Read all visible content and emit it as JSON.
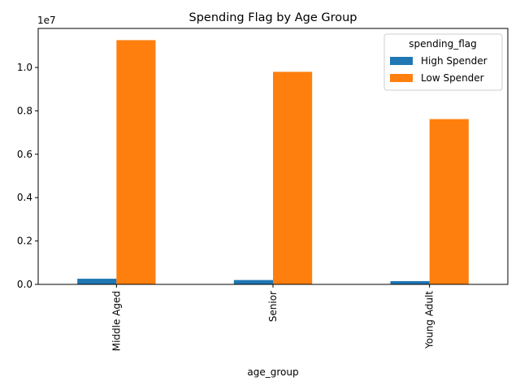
{
  "chart_data": {
    "type": "bar",
    "title": "Spending Flag by Age Group",
    "xlabel": "age_group",
    "ylabel": "",
    "y_offset_label": "1e7",
    "categories": [
      "Middle Aged",
      "Senior",
      "Young Adult"
    ],
    "series": [
      {
        "name": "High Spender",
        "values": [
          260000,
          200000,
          150000
        ],
        "color": "#1f77b4"
      },
      {
        "name": "Low Spender",
        "values": [
          11260000,
          9800000,
          7620000
        ],
        "color": "#ff7f0e"
      }
    ],
    "ylim": [
      0,
      11800000
    ],
    "yticks": [
      0,
      2000000,
      4000000,
      6000000,
      8000000,
      10000000
    ],
    "ytick_labels": [
      "0.0",
      "0.2",
      "0.4",
      "0.6",
      "0.8",
      "1.0"
    ],
    "legend": {
      "title": "spending_flag",
      "placement": "upper-right"
    },
    "grid": false
  }
}
